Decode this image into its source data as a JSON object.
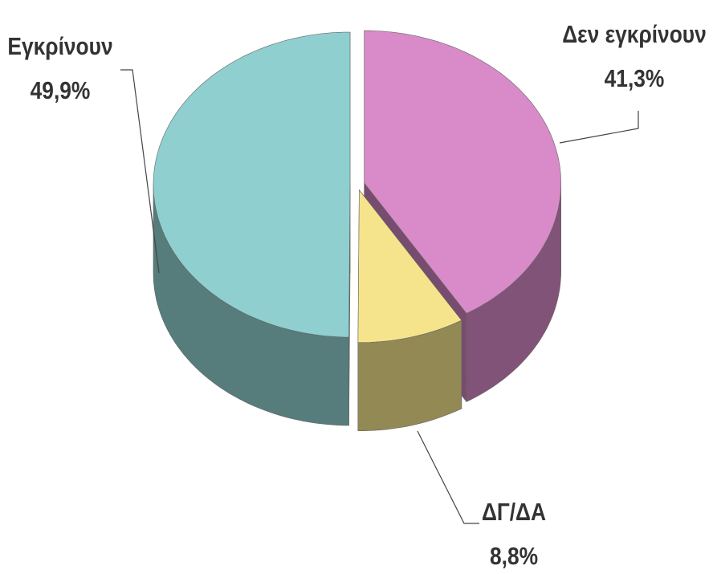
{
  "chart_data": {
    "type": "pie3d",
    "categories": [
      "Δεν εγκρίνουν",
      "ΔΓ/ΔΑ",
      "Εγκρίνουν"
    ],
    "values": [
      41.3,
      8.8,
      49.9
    ],
    "value_labels": [
      "41,3%",
      "8,8%",
      "49,9%"
    ],
    "colors": [
      "#d98ac8",
      "#f5e48c",
      "#8fcfcf"
    ]
  }
}
